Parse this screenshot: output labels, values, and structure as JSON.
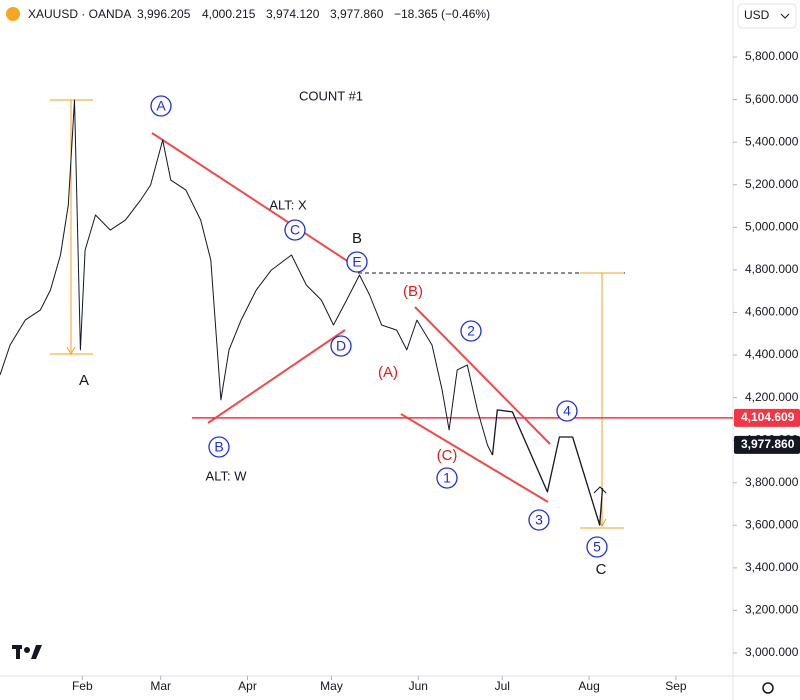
{
  "chart_data": {
    "type": "line",
    "header": {
      "symbol": "XAUUSD · OANDA",
      "open": "3,996.205",
      "high": "4,000.215",
      "low": "3,974.120",
      "close": "3,977.860",
      "change": "−18.365 (−0.46%)",
      "currency": "USD"
    },
    "xlim": [
      2.6,
      264.4
    ],
    "xticks": [
      {
        "value": 32,
        "label": "Feb"
      },
      {
        "value": 60,
        "label": "Mar"
      },
      {
        "value": 91,
        "label": "Apr"
      },
      {
        "value": 121,
        "label": "May"
      },
      {
        "value": 152,
        "label": "Jun"
      },
      {
        "value": 182,
        "label": "Jul"
      },
      {
        "value": 213,
        "label": "Aug"
      },
      {
        "value": 244,
        "label": "Sep"
      }
    ],
    "ylim": [
      2892,
      6068
    ],
    "yticks": [
      {
        "value": 3000,
        "label": "3,000.000"
      },
      {
        "value": 3200,
        "label": "3,200.000"
      },
      {
        "value": 3400,
        "label": "3,400.000"
      },
      {
        "value": 3600,
        "label": "3,600.000"
      },
      {
        "value": 3800,
        "label": "3,800.000"
      },
      {
        "value": 4000,
        "label": "4,000.000"
      },
      {
        "value": 4200,
        "label": "4,200.000"
      },
      {
        "value": 4400,
        "label": "4,400.000"
      },
      {
        "value": 4600,
        "label": "4,600.000"
      },
      {
        "value": 4800,
        "label": "4,800.000"
      },
      {
        "value": 5000,
        "label": "5,000.000"
      },
      {
        "value": 5200,
        "label": "5,200.000"
      },
      {
        "value": 5400,
        "label": "5,400.000"
      },
      {
        "value": 5600,
        "label": "5,600.000"
      },
      {
        "value": 5800,
        "label": "5,800.000"
      }
    ],
    "grid": false,
    "series": [
      {
        "color": "#131722",
        "x": [
          2.6,
          6.2,
          11.6,
          17,
          20.6,
          24.2,
          27,
          29.2,
          29.9,
          31.3,
          33,
          36.7,
          42,
          47.4,
          52.8,
          56.4,
          60.7,
          63.6,
          69,
          74.3,
          77.9,
          81.5,
          84.4,
          88.7,
          94.1,
          99.5,
          106.7,
          112,
          117.4,
          121.7,
          126.4,
          131,
          134.6,
          138.9,
          144.3,
          147.9,
          151.5,
          156.9,
          160.5,
          163,
          165.9,
          169.5,
          173.1,
          176.7,
          178.5
        ],
        "values": [
          4306,
          4447,
          4564,
          4611,
          4705,
          4870,
          5105,
          5598,
          5222,
          4424,
          4893,
          5058,
          4987,
          5034,
          5128,
          5199,
          5410,
          5222,
          5175,
          5034,
          4846,
          4189,
          4424,
          4564,
          4705,
          4799,
          4870,
          4729,
          4658,
          4541,
          4658,
          4776,
          4682,
          4541,
          4517,
          4424,
          4564,
          4447,
          4236,
          4048,
          4330,
          4353,
          4142,
          3977,
          3930
        ]
      },
      {
        "color": "#131722",
        "x": [
          178.5,
          180.2,
          185.6,
          198.1,
          202.4,
          207.1,
          216.8,
          217.8
        ],
        "values": [
          3930,
          4142,
          4133,
          3757,
          4015,
          4015,
          3601,
          3775
        ]
      }
    ],
    "level": {
      "value": 4104.609,
      "label": "4,104.609",
      "color": "#f23645"
    },
    "last_price": {
      "value": 3977.86,
      "label": "3,977.860",
      "color": "#131722"
    },
    "annotations": [
      {
        "text": "A",
        "color": "#1e2fd6",
        "style": "circle"
      },
      {
        "text": "COUNT #1",
        "color": "#131722",
        "style": "plain"
      },
      {
        "text": "ALT: X",
        "color": "#131722",
        "style": "plain"
      },
      {
        "text": "C",
        "color": "#1e2fd6",
        "style": "circle"
      },
      {
        "text": "B",
        "color": "#131722",
        "style": "plain"
      },
      {
        "text": "E",
        "color": "#1e2fd6",
        "style": "circle"
      },
      {
        "text": "D",
        "color": "#1e2fd6",
        "style": "circle"
      },
      {
        "text": "(B)",
        "color": "#e01b1b",
        "style": "plain"
      },
      {
        "text": "2",
        "color": "#1e2fd6",
        "style": "circle"
      },
      {
        "text": "(A)",
        "color": "#e01b1b",
        "style": "plain"
      },
      {
        "text": "A",
        "color": "#131722",
        "style": "plain"
      },
      {
        "text": "B",
        "color": "#1e2fd6",
        "style": "circle"
      },
      {
        "text": "ALT: W",
        "color": "#131722",
        "style": "plain"
      },
      {
        "text": "(C)",
        "color": "#e01b1b",
        "style": "plain"
      },
      {
        "text": "1",
        "color": "#1e2fd6",
        "style": "circle"
      },
      {
        "text": "4",
        "color": "#1e2fd6",
        "style": "circle"
      },
      {
        "text": "3",
        "color": "#1e2fd6",
        "style": "circle"
      },
      {
        "text": "5",
        "color": "#1e2fd6",
        "style": "circle"
      },
      {
        "text": "C",
        "color": "#131722",
        "style": "plain"
      }
    ]
  }
}
